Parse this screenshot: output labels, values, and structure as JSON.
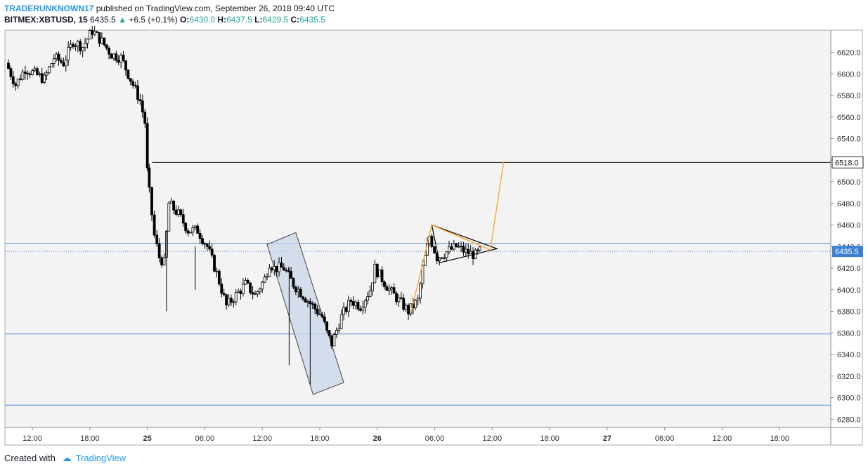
{
  "header": {
    "author": "TRADERUNKNOWN17",
    "published_text": "published on TradingView.com, September 26, 2018 09:40 UTC",
    "symbol": "BITMEX:XBTUSD, 15",
    "last": "6435.5",
    "change": "+6.5 (+0.1%)",
    "o_label": "O:",
    "o_value": "6430.0",
    "h_label": "H:",
    "h_value": "6437.5",
    "l_label": "L:",
    "l_value": "6429.5",
    "c_label": "C:",
    "c_value": "6435.5"
  },
  "footer": {
    "created_with": "Created with",
    "brand": "TradingView"
  },
  "colors": {
    "up": "#26a69a",
    "hline": "#5b8fd9",
    "rect": "#c9d6ea",
    "orange": "#f5a623",
    "price_tag": "#3b82d6",
    "background": "#f3f3f3"
  },
  "chart_data": {
    "type": "candlestick",
    "symbol": "BITMEX:XBTUSD",
    "interval": "15",
    "ylim": [
      6270,
      6640
    ],
    "y_ticks": [
      6280,
      6300,
      6320,
      6340,
      6360,
      6380,
      6400,
      6420,
      6440,
      6460,
      6480,
      6500,
      6520,
      6540,
      6560,
      6580,
      6600,
      6620
    ],
    "x_ticks": [
      "12:00",
      "18:00",
      "25",
      "06:00",
      "12:00",
      "18:00",
      "26",
      "06:00",
      "12:00",
      "18:00",
      "27",
      "06:00",
      "12:00",
      "18:00"
    ],
    "x_ticks_hours": [
      12,
      18,
      24,
      30,
      36,
      42,
      48,
      54,
      60,
      66,
      72,
      78,
      84,
      90
    ],
    "horizontal_lines": [
      6443,
      6359,
      6293
    ],
    "resistance_line": {
      "price": 6518,
      "label": "6518.0",
      "from_hour": 24.5
    },
    "last_price": {
      "price": 6435.5,
      "label": "6435.5"
    },
    "trend_channel": [
      [
        36.5,
        6442
      ],
      [
        39.5,
        6453
      ],
      [
        44.5,
        6314
      ],
      [
        41.3,
        6303
      ]
    ],
    "triangle": [
      [
        53.7,
        6460
      ],
      [
        60.5,
        6438
      ],
      [
        54.5,
        6425
      ]
    ],
    "orange_path": [
      [
        51.5,
        6378
      ],
      [
        53.7,
        6460
      ],
      [
        59.8,
        6437
      ],
      [
        61.2,
        6519
      ]
    ],
    "series_ohlc_points": [
      [
        9.5,
        6610
      ],
      [
        10.5,
        6590
      ],
      [
        11.5,
        6605
      ],
      [
        12.5,
        6600
      ],
      [
        13.5,
        6595
      ],
      [
        14.5,
        6615
      ],
      [
        15.5,
        6610
      ],
      [
        16.5,
        6630
      ],
      [
        17.5,
        6625
      ],
      [
        18.5,
        6640
      ],
      [
        19.5,
        6630
      ],
      [
        20.5,
        6618
      ],
      [
        21.5,
        6615
      ],
      [
        22.5,
        6595
      ],
      [
        23.5,
        6575
      ],
      [
        24.0,
        6555
      ],
      [
        24.2,
        6510
      ],
      [
        25.0,
        6450
      ],
      [
        25.5,
        6430
      ],
      [
        26.0,
        6425
      ],
      [
        26.5,
        6480
      ],
      [
        27.5,
        6470
      ],
      [
        28.5,
        6455
      ],
      [
        29.5,
        6455
      ],
      [
        30.5,
        6440
      ],
      [
        31.5,
        6415
      ],
      [
        32.5,
        6385
      ],
      [
        33.5,
        6395
      ],
      [
        34.5,
        6405
      ],
      [
        35.5,
        6395
      ],
      [
        36.5,
        6410
      ],
      [
        37.0,
        6425
      ],
      [
        37.5,
        6420
      ],
      [
        38.5,
        6420
      ],
      [
        39.5,
        6405
      ],
      [
        40.5,
        6395
      ],
      [
        41.5,
        6385
      ],
      [
        42.5,
        6375
      ],
      [
        43.0,
        6360
      ],
      [
        43.5,
        6350
      ],
      [
        44.5,
        6375
      ],
      [
        45.5,
        6390
      ],
      [
        46.5,
        6385
      ],
      [
        47.5,
        6400
      ],
      [
        48.0,
        6420
      ],
      [
        49.5,
        6400
      ],
      [
        50.5,
        6390
      ],
      [
        51.5,
        6380
      ],
      [
        52.5,
        6390
      ],
      [
        53.0,
        6420
      ],
      [
        53.7,
        6450
      ],
      [
        54.5,
        6430
      ],
      [
        55.5,
        6435
      ],
      [
        56.5,
        6440
      ],
      [
        57.5,
        6435
      ],
      [
        58.5,
        6432
      ],
      [
        58.9,
        6435.5
      ]
    ]
  }
}
